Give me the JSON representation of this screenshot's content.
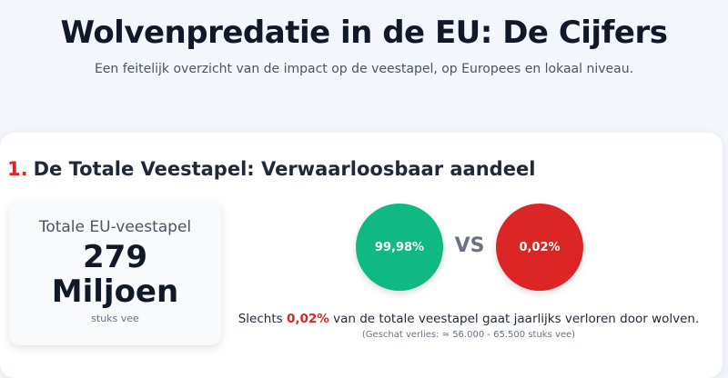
{
  "header": {
    "title": "Wolvenpredatie in de EU: De Cijfers",
    "subtitle": "Een feitelijk overzicht van de impact op de veestapel, op Europees en lokaal niveau."
  },
  "section": {
    "number": "1.",
    "title": "De Totale Veestapel: Verwaarloosbaar aandeel",
    "stat_card": {
      "label": "Totale EU-veestapel",
      "value": "279",
      "unit_word": "Miljoen",
      "caption": "stuks vee"
    },
    "comparison": {
      "left": "99,98%",
      "separator": "VS",
      "right": "0,02%"
    },
    "sentence": {
      "before": "Slechts ",
      "highlight": "0,02%",
      "after": " van de totale veestapel gaat jaarlijks verloren door wolven."
    },
    "note": "(Geschat verlies: ≈ 56.000 - 65.500 stuks vee)"
  }
}
